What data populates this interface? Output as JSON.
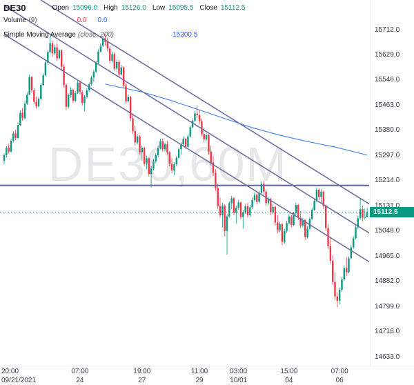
{
  "legend": {
    "symbol": "DE30",
    "open_label": "Open",
    "open": "15096.0",
    "high_label": "High",
    "high": "15126.0",
    "low_label": "Low",
    "low": "15095.5",
    "close_label": "Close",
    "close": "15112.5"
  },
  "volume": {
    "label": "Volume",
    "param": "(9)",
    "value1": "0.0",
    "value2": "0.0"
  },
  "sma": {
    "label": "Simple Moving Average",
    "param": "(close, 200)",
    "value": "15300.5"
  },
  "watermark": "DE30,60M",
  "price_badge": "15112.5",
  "chart_data": {
    "type": "candlestick",
    "symbol": "DE30",
    "timeframe": "60M",
    "colors": {
      "up": "#089981",
      "down": "#f23645",
      "sma": "#2c76e0",
      "trend": "#6b6fa3",
      "badge": "#089981"
    },
    "price_axis": {
      "ticks": [
        15712,
        15629,
        15546,
        15463,
        15380,
        15297,
        15214,
        15131,
        15048,
        14965,
        14882,
        14799,
        14716,
        14633
      ]
    },
    "time_axis": [
      {
        "time": "20:00",
        "date": "09/21/2021",
        "i": 4
      },
      {
        "time": "07:00",
        "date": "24",
        "i": 33
      },
      {
        "time": "19:00",
        "date": "27",
        "i": 60
      },
      {
        "time": "11:00",
        "date": "29",
        "i": 85
      },
      {
        "time": "03:00",
        "date": "10/01",
        "i": 102
      },
      {
        "time": "15:00",
        "date": "04",
        "i": 124
      },
      {
        "time": "07:00",
        "date": "06",
        "i": 146
      }
    ],
    "hline_price": 15200,
    "last_price": 15112.5,
    "trendlines": [
      {
        "i1": 16,
        "p1": 15812,
        "i2": 160,
        "p2": 15134
      },
      {
        "i1": 0,
        "p1": 15794,
        "i2": 160,
        "p2": 15038
      },
      {
        "i1": 0,
        "p1": 15699,
        "i2": 160,
        "p2": 14943
      }
    ],
    "sma_points": [
      [
        44,
        15535
      ],
      [
        48,
        15528
      ],
      [
        60,
        15509
      ],
      [
        72,
        15482
      ],
      [
        84,
        15452
      ],
      [
        96,
        15421
      ],
      [
        108,
        15391
      ],
      [
        120,
        15366
      ],
      [
        132,
        15345
      ],
      [
        144,
        15327
      ],
      [
        158,
        15300.5
      ]
    ],
    "ohlc": [
      [
        15282,
        15306,
        15270,
        15300
      ],
      [
        15300,
        15330,
        15292,
        15325
      ],
      [
        15325,
        15338,
        15305,
        15312
      ],
      [
        15312,
        15355,
        15308,
        15348
      ],
      [
        15348,
        15380,
        15342,
        15372
      ],
      [
        15372,
        15384,
        15350,
        15357
      ],
      [
        15357,
        15408,
        15354,
        15400
      ],
      [
        15400,
        15448,
        15396,
        15440
      ],
      [
        15440,
        15456,
        15414,
        15422
      ],
      [
        15422,
        15478,
        15418,
        15470
      ],
      [
        15470,
        15508,
        15466,
        15500
      ],
      [
        15500,
        15566,
        15498,
        15558
      ],
      [
        15558,
        15562,
        15506,
        15514
      ],
      [
        15514,
        15522,
        15468,
        15476
      ],
      [
        15476,
        15494,
        15454,
        15462
      ],
      [
        15462,
        15492,
        15458,
        15486
      ],
      [
        15486,
        15538,
        15482,
        15532
      ],
      [
        15532,
        15570,
        15528,
        15564
      ],
      [
        15564,
        15614,
        15560,
        15606
      ],
      [
        15606,
        15646,
        15602,
        15640
      ],
      [
        15640,
        15690,
        15636,
        15670
      ],
      [
        15670,
        15678,
        15624,
        15636
      ],
      [
        15636,
        15664,
        15630,
        15656
      ],
      [
        15656,
        15668,
        15612,
        15620
      ],
      [
        15620,
        15652,
        15616,
        15646
      ],
      [
        15646,
        15650,
        15582,
        15592
      ],
      [
        15592,
        15600,
        15524,
        15532
      ],
      [
        15532,
        15538,
        15448,
        15460
      ],
      [
        15460,
        15504,
        15454,
        15498
      ],
      [
        15498,
        15524,
        15490,
        15516
      ],
      [
        15516,
        15520,
        15472,
        15480
      ],
      [
        15480,
        15512,
        15476,
        15506
      ],
      [
        15506,
        15546,
        15502,
        15540
      ],
      [
        15540,
        15547,
        15500,
        15508
      ],
      [
        15508,
        15514,
        15464,
        15472
      ],
      [
        15472,
        15498,
        15446,
        15492
      ],
      [
        15492,
        15522,
        15488,
        15514
      ],
      [
        15514,
        15540,
        15510,
        15534
      ],
      [
        15534,
        15562,
        15530,
        15556
      ],
      [
        15556,
        15582,
        15542,
        15576
      ],
      [
        15576,
        15612,
        15572,
        15606
      ],
      [
        15606,
        15650,
        15602,
        15642
      ],
      [
        15642,
        15670,
        15638,
        15662
      ],
      [
        15662,
        15694,
        15658,
        15686
      ],
      [
        15686,
        15700,
        15662,
        15674
      ],
      [
        15674,
        15688,
        15642,
        15652
      ],
      [
        15652,
        15660,
        15602,
        15612
      ],
      [
        15612,
        15642,
        15606,
        15634
      ],
      [
        15634,
        15640,
        15578,
        15586
      ],
      [
        15586,
        15616,
        15580,
        15608
      ],
      [
        15608,
        15614,
        15558,
        15566
      ],
      [
        15566,
        15598,
        15562,
        15590
      ],
      [
        15590,
        15594,
        15522,
        15530
      ],
      [
        15530,
        15538,
        15470,
        15478
      ],
      [
        15478,
        15500,
        15472,
        15492
      ],
      [
        15492,
        15496,
        15412,
        15422
      ],
      [
        15422,
        15438,
        15370,
        15380
      ],
      [
        15380,
        15398,
        15332,
        15342
      ],
      [
        15342,
        15370,
        15336,
        15362
      ],
      [
        15362,
        15366,
        15302,
        15310
      ],
      [
        15310,
        15332,
        15282,
        15324
      ],
      [
        15324,
        15328,
        15264,
        15272
      ],
      [
        15272,
        15298,
        15254,
        15290
      ],
      [
        15290,
        15294,
        15230,
        15238
      ],
      [
        15238,
        15264,
        15194,
        15256
      ],
      [
        15256,
        15288,
        15250,
        15280
      ],
      [
        15280,
        15308,
        15274,
        15300
      ],
      [
        15300,
        15332,
        15294,
        15324
      ],
      [
        15324,
        15354,
        15320,
        15346
      ],
      [
        15346,
        15356,
        15312,
        15320
      ],
      [
        15320,
        15342,
        15314,
        15336
      ],
      [
        15336,
        15348,
        15302,
        15310
      ],
      [
        15310,
        15314,
        15264,
        15272
      ],
      [
        15272,
        15290,
        15240,
        15250
      ],
      [
        15250,
        15278,
        15234,
        15270
      ],
      [
        15270,
        15298,
        15264,
        15292
      ],
      [
        15292,
        15326,
        15288,
        15320
      ],
      [
        15320,
        15342,
        15302,
        15336
      ],
      [
        15336,
        15362,
        15332,
        15354
      ],
      [
        15354,
        15358,
        15320,
        15328
      ],
      [
        15328,
        15368,
        15324,
        15362
      ],
      [
        15362,
        15398,
        15358,
        15392
      ],
      [
        15392,
        15422,
        15388,
        15414
      ],
      [
        15414,
        15446,
        15410,
        15438
      ],
      [
        15438,
        15464,
        15422,
        15432
      ],
      [
        15432,
        15450,
        15402,
        15412
      ],
      [
        15412,
        15420,
        15362,
        15370
      ],
      [
        15370,
        15392,
        15342,
        15352
      ],
      [
        15352,
        15374,
        15346,
        15366
      ],
      [
        15366,
        15370,
        15302,
        15312
      ],
      [
        15312,
        15332,
        15266,
        15276
      ],
      [
        15276,
        15298,
        15232,
        15242
      ],
      [
        15242,
        15254,
        15182,
        15192
      ],
      [
        15192,
        15206,
        15122,
        15132
      ],
      [
        15132,
        15160,
        15094,
        15102
      ],
      [
        15102,
        15142,
        15062,
        15134
      ],
      [
        15134,
        15138,
        15032,
        15050
      ],
      [
        15050,
        15106,
        14972,
        15098
      ],
      [
        15098,
        15148,
        15094,
        15142
      ],
      [
        15142,
        15166,
        15122,
        15158
      ],
      [
        15158,
        15162,
        15102,
        15110
      ],
      [
        15110,
        15134,
        15074,
        15126
      ],
      [
        15126,
        15152,
        15120,
        15144
      ],
      [
        15144,
        15148,
        15088,
        15096
      ],
      [
        15096,
        15120,
        15058,
        15112
      ],
      [
        15112,
        15140,
        15106,
        15132
      ],
      [
        15132,
        15144,
        15094,
        15102
      ],
      [
        15102,
        15136,
        15096,
        15128
      ],
      [
        15128,
        15160,
        15122,
        15152
      ],
      [
        15152,
        15178,
        15146,
        15170
      ],
      [
        15170,
        15174,
        15138,
        15146
      ],
      [
        15146,
        15182,
        15142,
        15176
      ],
      [
        15176,
        15214,
        15172,
        15206
      ],
      [
        15206,
        15216,
        15170,
        15180
      ],
      [
        15180,
        15188,
        15132,
        15142
      ],
      [
        15142,
        15164,
        15136,
        15156
      ],
      [
        15156,
        15160,
        15102,
        15112
      ],
      [
        15112,
        15138,
        15106,
        15130
      ],
      [
        15130,
        15134,
        15068,
        15078
      ],
      [
        15078,
        15102,
        15042,
        15052
      ],
      [
        15052,
        15080,
        15046,
        15072
      ],
      [
        15072,
        15076,
        15004,
        15014
      ],
      [
        15014,
        15058,
        15008,
        15050
      ],
      [
        15050,
        15084,
        15044,
        15076
      ],
      [
        15076,
        15106,
        15072,
        15098
      ],
      [
        15098,
        15102,
        15062,
        15070
      ],
      [
        15070,
        15114,
        15066,
        15108
      ],
      [
        15108,
        15144,
        15104,
        15136
      ],
      [
        15136,
        15140,
        15086,
        15094
      ],
      [
        15094,
        15116,
        15060,
        15068
      ],
      [
        15068,
        15094,
        15062,
        15086
      ],
      [
        15086,
        15090,
        15020,
        15030
      ],
      [
        15030,
        15066,
        15024,
        15058
      ],
      [
        15058,
        15096,
        15054,
        15090
      ],
      [
        15090,
        15126,
        15086,
        15120
      ],
      [
        15120,
        15158,
        15116,
        15150
      ],
      [
        15150,
        15194,
        15146,
        15186
      ],
      [
        15186,
        15192,
        15152,
        15162
      ],
      [
        15162,
        15188,
        15142,
        15180
      ],
      [
        15180,
        15184,
        15122,
        15132
      ],
      [
        15132,
        15138,
        15050,
        15060
      ],
      [
        15060,
        15074,
        14990,
        15000
      ],
      [
        15000,
        15028,
        14942,
        14952
      ],
      [
        14952,
        14970,
        14872,
        14882
      ],
      [
        14882,
        14914,
        14822,
        14834
      ],
      [
        14834,
        14848,
        14799,
        14820
      ],
      [
        14820,
        14864,
        14808,
        14856
      ],
      [
        14856,
        14898,
        14850,
        14890
      ],
      [
        14890,
        14936,
        14886,
        14928
      ],
      [
        14928,
        14964,
        14902,
        14914
      ],
      [
        14914,
        14966,
        14910,
        14960
      ],
      [
        14960,
        15004,
        14956,
        14996
      ],
      [
        14996,
        15032,
        14990,
        15026
      ],
      [
        15026,
        15070,
        15022,
        15062
      ],
      [
        15062,
        15100,
        15056,
        15092
      ],
      [
        15092,
        15158,
        15086,
        15122
      ],
      [
        15122,
        15134,
        15082,
        15094
      ],
      [
        15094,
        15124,
        15088,
        15096
      ],
      [
        15096,
        15126,
        15095.5,
        15112.5
      ]
    ]
  }
}
